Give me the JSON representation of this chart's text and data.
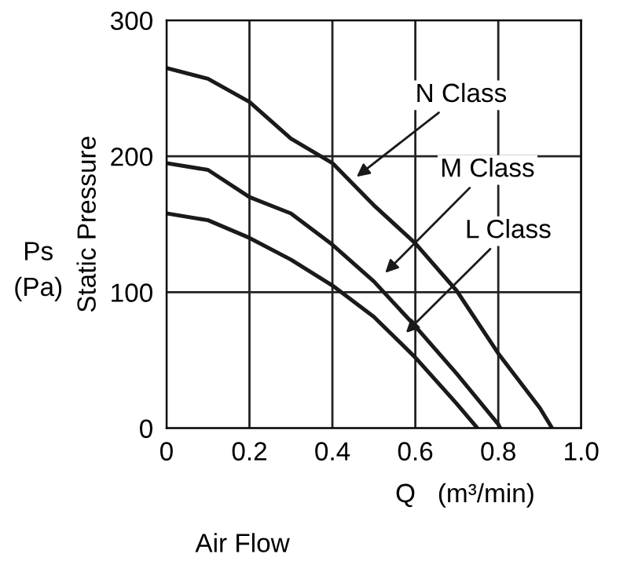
{
  "chart_data": {
    "type": "line",
    "xlabel": "Q   (m³/min)",
    "ylabel": "Static Pressure",
    "series": [
      {
        "color": "#1a1a1a",
        "x": [
          0,
          0.1,
          0.2,
          0.3,
          0.4,
          0.5,
          0.6,
          0.7,
          0.8,
          0.9,
          0.93
        ],
        "values": [
          265,
          257,
          240,
          213,
          195,
          164,
          136,
          101,
          55,
          15,
          0
        ]
      },
      {
        "color": "#1a1a1a",
        "x": [
          0,
          0.1,
          0.2,
          0.3,
          0.4,
          0.5,
          0.6,
          0.7,
          0.8,
          0.805
        ],
        "values": [
          195,
          190,
          170,
          158,
          135,
          108,
          75,
          40,
          3,
          0
        ]
      },
      {
        "color": "#1a1a1a",
        "x": [
          0,
          0.1,
          0.2,
          0.3,
          0.4,
          0.5,
          0.6,
          0.7,
          0.75
        ],
        "values": [
          158,
          153,
          140,
          124,
          105,
          82,
          52,
          18,
          0
        ]
      }
    ],
    "annotations": [
      {
        "text": "N Class",
        "x": 0.45,
        "y": 183
      },
      {
        "text": "M Class",
        "x": 0.52,
        "y": 112
      },
      {
        "text": "L Class",
        "x": 0.57,
        "y": 68
      },
      "Air Flow",
      "Ps\n(Pa)"
    ],
    "xlim": [
      0,
      1.0
    ],
    "xticks": [
      0,
      0.2,
      0.4,
      0.6,
      0.8,
      {
        "value": 1.0,
        "label": "1.0"
      }
    ],
    "ylim": [
      0,
      300
    ],
    "yticks": [
      0,
      100,
      200,
      300
    ],
    "grid": true,
    "legend": false,
    "marker": "none",
    "line_style": "solid"
  }
}
